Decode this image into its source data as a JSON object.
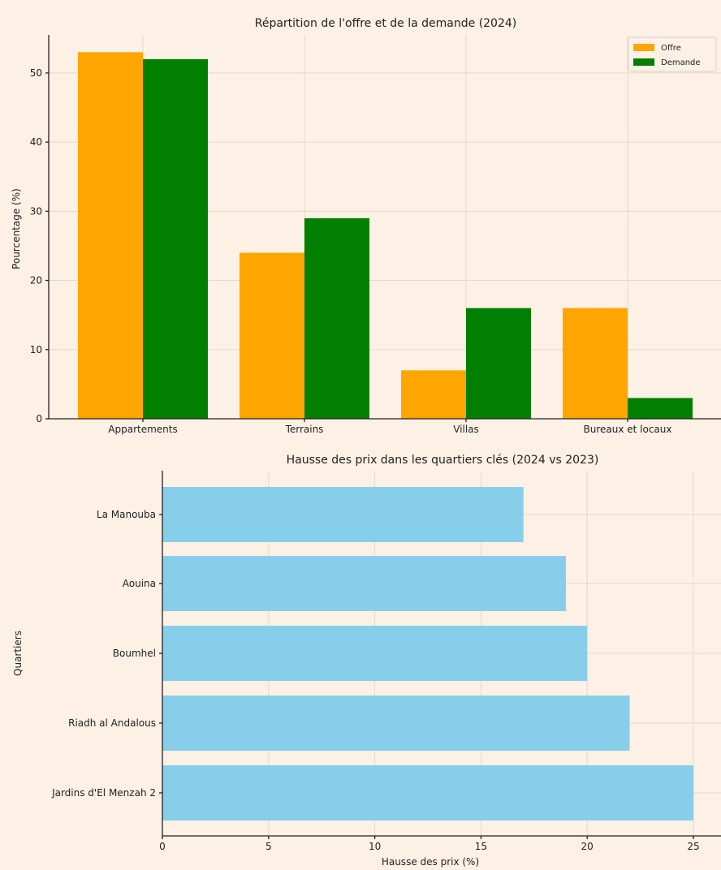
{
  "background": "#fdf0e5",
  "chart_data": [
    {
      "type": "bar",
      "title": "Répartition de l'offre et de la demande (2024)",
      "xlabel": "",
      "ylabel": "Pourcentage (%)",
      "categories": [
        "Appartements",
        "Terrains",
        "Villas",
        "Bureaux et locaux"
      ],
      "series": [
        {
          "name": "Offre",
          "color": "#ffa500",
          "values": [
            53,
            24,
            7,
            16
          ]
        },
        {
          "name": "Demande",
          "color": "#007f00",
          "values": [
            52,
            29,
            16,
            3
          ]
        }
      ],
      "ylim": [
        0,
        55.5
      ],
      "yticks": [
        0,
        10,
        20,
        30,
        40,
        50
      ],
      "grid": true,
      "legend": "top-right"
    },
    {
      "type": "bar",
      "orientation": "horizontal",
      "title": "Hausse des prix dans les quartiers clés (2024 vs 2023)",
      "xlabel": "Hausse des prix (%)",
      "ylabel": "Quartiers",
      "categories": [
        "La Manouba",
        "Aouina",
        "Boumhel",
        "Riadh al Andalous",
        "Jardins d'El Menzah 2"
      ],
      "values": [
        17,
        19,
        20,
        22,
        25
      ],
      "color": "#87ceeb",
      "xlim": [
        0,
        26.3
      ],
      "xticks": [
        0,
        5,
        10,
        15,
        20,
        25
      ],
      "grid": true
    }
  ]
}
